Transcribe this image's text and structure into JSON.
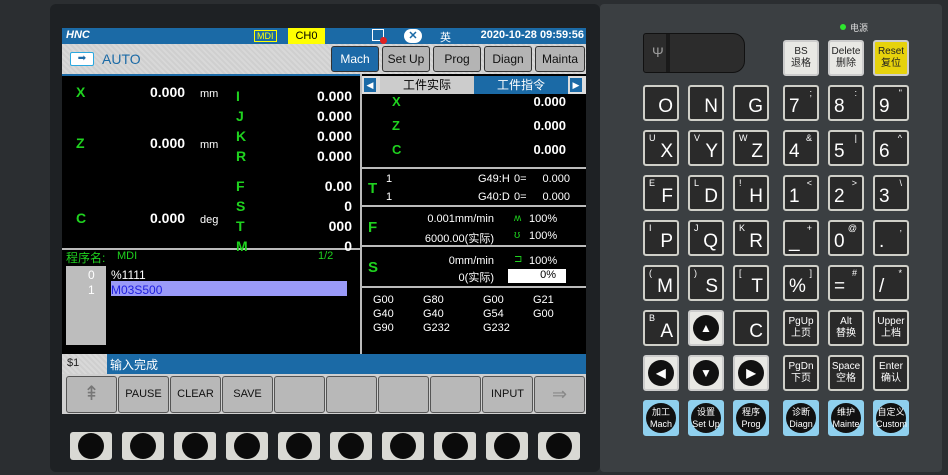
{
  "header": {
    "logo": "HNC",
    "mode_badge": "MDI",
    "channel": "CH0",
    "lang": "英",
    "datetime": "2020-10-28 09:59:56"
  },
  "mode": {
    "label": "AUTO",
    "tabs": [
      "Mach",
      "Set Up",
      "Prog",
      "Diagn",
      "Mainta"
    ],
    "active": 0
  },
  "coords": {
    "axes": [
      {
        "name": "X",
        "value": "0.000",
        "unit": "mm"
      },
      {
        "name": "Z",
        "value": "0.000",
        "unit": "mm"
      },
      {
        "name": "C",
        "value": "0.000",
        "unit": "deg"
      }
    ],
    "ijkr": [
      {
        "name": "I",
        "value": "0.000"
      },
      {
        "name": "J",
        "value": "0.000"
      },
      {
        "name": "K",
        "value": "0.000"
      },
      {
        "name": "R",
        "value": "0.000"
      }
    ],
    "fstm": [
      {
        "name": "F",
        "value": "0.00"
      },
      {
        "name": "S",
        "value": "0"
      },
      {
        "name": "T",
        "value": "000"
      },
      {
        "name": "M",
        "value": "0"
      }
    ]
  },
  "program": {
    "name_label": "程序名:",
    "name": "MDI",
    "page": "1/2",
    "lines": [
      {
        "no": "0",
        "text": "%1111"
      },
      {
        "no": "1",
        "text": "M03S500"
      }
    ]
  },
  "right": {
    "tab_actual": "工件实际",
    "tab_command": "工件指令",
    "axes": [
      {
        "name": "X",
        "value": "0.000"
      },
      {
        "name": "Z",
        "value": "0.000"
      },
      {
        "name": "C",
        "value": "0.000"
      }
    ],
    "tool": {
      "label": "T",
      "rows": [
        {
          "a": "1",
          "b": "G49:H",
          "c": "0=",
          "d": "0.000"
        },
        {
          "a": "1",
          "b": "G40:D",
          "c": "0=",
          "d": "0.000"
        }
      ]
    },
    "feed": {
      "label": "F",
      "cmd": "0.001mm/min",
      "actual": "6000.00(实际)",
      "ovr1": "100%",
      "ovr2": "100%"
    },
    "spindle": {
      "label": "S",
      "cmd": "0mm/min",
      "actual": "0(实际)",
      "ovr": "100%",
      "load": "0%"
    },
    "gcodes": [
      "G00",
      "G80",
      "G00",
      "G21",
      "G40",
      "G40",
      "G54",
      "G00",
      "G90",
      "G232",
      "G232"
    ]
  },
  "status": {
    "id": "$1",
    "message": "输入完成"
  },
  "softkeys": [
    "",
    "PAUSE",
    "CLEAR",
    "SAVE",
    "",
    "",
    "",
    "",
    "INPUT",
    ""
  ],
  "panel": {
    "power_label": "电源",
    "power_color": "#2ee62e",
    "top_keys": [
      {
        "a": "BS",
        "b": "退格"
      },
      {
        "a": "Delete",
        "b": "删除"
      },
      {
        "a": "Reset",
        "b": "复位"
      }
    ],
    "keys": [
      {
        "m": "O",
        "s": ""
      },
      {
        "m": "N",
        "s": ""
      },
      {
        "m": "G",
        "s": ""
      },
      {
        "m": "7",
        "s": ";"
      },
      {
        "m": "8",
        "s": ":"
      },
      {
        "m": "9",
        "s": "\""
      },
      {
        "m": "X",
        "s": "U"
      },
      {
        "m": "Y",
        "s": "V"
      },
      {
        "m": "Z",
        "s": "W"
      },
      {
        "m": "4",
        "s": "&"
      },
      {
        "m": "5",
        "s": "|"
      },
      {
        "m": "6",
        "s": "^"
      },
      {
        "m": "F",
        "s": "E"
      },
      {
        "m": "D",
        "s": "L"
      },
      {
        "m": "H",
        "s": "!"
      },
      {
        "m": "1",
        "s": "<"
      },
      {
        "m": "2",
        "s": ">"
      },
      {
        "m": "3",
        "s": "\\"
      },
      {
        "m": "P",
        "s": "I"
      },
      {
        "m": "Q",
        "s": "J"
      },
      {
        "m": "R",
        "s": "K"
      },
      {
        "m": "_",
        "s": "+"
      },
      {
        "m": "0",
        "s": "@"
      },
      {
        "m": ".",
        "s": ","
      },
      {
        "m": "M",
        "s": "("
      },
      {
        "m": "S",
        "s": ")"
      },
      {
        "m": "T",
        "s": "["
      },
      {
        "m": "%",
        "s": "]"
      },
      {
        "m": "=",
        "s": "#"
      },
      {
        "m": "/",
        "s": "*"
      },
      {
        "m": "A",
        "s": "B"
      },
      {
        "m": "▲",
        "s": ""
      },
      {
        "m": "C",
        "s": ""
      },
      {
        "m": "PgUp",
        "s": "上页"
      },
      {
        "m": "Alt",
        "s": "替换"
      },
      {
        "m": "Upper",
        "s": "上档"
      },
      {
        "m": "◀",
        "s": ""
      },
      {
        "m": "▼",
        "s": ""
      },
      {
        "m": "▶",
        "s": ""
      },
      {
        "m": "PgDn",
        "s": "下页"
      },
      {
        "m": "Space",
        "s": "空格"
      },
      {
        "m": "Enter",
        "s": "确认"
      },
      {
        "m": "加工",
        "s": "Mach"
      },
      {
        "m": "设置",
        "s": "Set Up"
      },
      {
        "m": "程序",
        "s": "Prog"
      },
      {
        "m": "诊断",
        "s": "Diagn"
      },
      {
        "m": "维护",
        "s": "Mainte"
      },
      {
        "m": "自定义",
        "s": "Custom"
      }
    ]
  }
}
